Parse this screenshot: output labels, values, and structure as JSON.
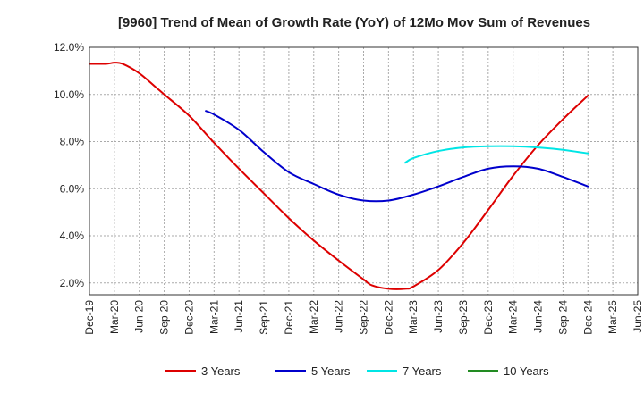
{
  "chart_data": {
    "type": "line",
    "title": "[9960]  Trend of Mean of Growth Rate (YoY) of 12Mo Mov Sum of Revenues",
    "xlabel": "",
    "ylabel": "",
    "ylim": [
      1.5,
      12.0
    ],
    "yticks": [
      2.0,
      4.0,
      6.0,
      8.0,
      10.0,
      12.0
    ],
    "ytick_labels": [
      "2.0%",
      "4.0%",
      "6.0%",
      "8.0%",
      "10.0%",
      "12.0%"
    ],
    "xlim": [
      0,
      22
    ],
    "xticks": [
      0,
      1,
      2,
      3,
      4,
      5,
      6,
      7,
      8,
      9,
      10,
      11,
      12,
      13,
      14,
      15,
      16,
      17,
      18,
      19,
      20,
      21,
      22
    ],
    "xtick_labels": [
      "Dec-19",
      "Mar-20",
      "Jun-20",
      "Sep-20",
      "Dec-20",
      "Mar-21",
      "Jun-21",
      "Sep-21",
      "Dec-21",
      "Mar-22",
      "Jun-22",
      "Sep-22",
      "Dec-22",
      "Mar-23",
      "Jun-23",
      "Sep-23",
      "Dec-23",
      "Mar-24",
      "Jun-24",
      "Sep-24",
      "Dec-24",
      "Mar-25",
      "Jun-25"
    ],
    "grid": true,
    "legend_position": "bottom",
    "series": [
      {
        "name": "3 Years",
        "color": "#dd0000",
        "x": [
          0,
          0.67,
          1,
          1.33,
          2,
          2.67,
          3,
          4,
          5,
          6,
          7,
          8,
          9,
          10,
          11,
          11.33,
          12,
          12.67,
          13,
          14,
          15,
          16,
          17,
          18,
          19,
          20
        ],
        "y": [
          11.3,
          11.3,
          11.35,
          11.3,
          10.9,
          10.3,
          10.0,
          9.1,
          7.95,
          6.85,
          5.8,
          4.75,
          3.8,
          2.95,
          2.15,
          1.9,
          1.75,
          1.75,
          1.85,
          2.55,
          3.7,
          5.1,
          6.55,
          7.85,
          8.95,
          9.95
        ]
      },
      {
        "name": "5 Years",
        "color": "#0000cc",
        "x": [
          4.67,
          5,
          6,
          7,
          8,
          9,
          10,
          11,
          12,
          13,
          14,
          15,
          16,
          17,
          18,
          19,
          20
        ],
        "y": [
          9.3,
          9.15,
          8.5,
          7.55,
          6.7,
          6.2,
          5.75,
          5.5,
          5.5,
          5.75,
          6.1,
          6.5,
          6.85,
          6.95,
          6.85,
          6.5,
          6.1
        ]
      },
      {
        "name": "7 Years",
        "color": "#00e5e5",
        "x": [
          12.67,
          13,
          14,
          15,
          16,
          17,
          18,
          19,
          20
        ],
        "y": [
          7.1,
          7.3,
          7.6,
          7.75,
          7.8,
          7.8,
          7.75,
          7.65,
          7.5
        ]
      },
      {
        "name": "10 Years",
        "color": "#228b22",
        "x": [],
        "y": []
      }
    ]
  }
}
